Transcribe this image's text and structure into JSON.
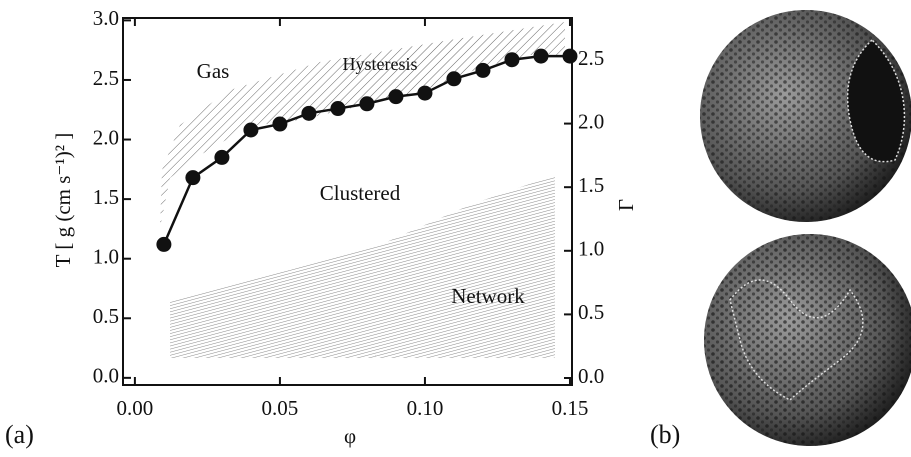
{
  "chart_data": {
    "type": "line",
    "x_label": "φ",
    "y_label": "T [ g (cm s⁻¹)² ]",
    "y2_label": "Γ",
    "x": [
      0.01,
      0.02,
      0.03,
      0.04,
      0.05,
      0.06,
      0.07,
      0.08,
      0.09,
      0.1,
      0.11,
      0.12,
      0.13,
      0.14,
      0.15
    ],
    "series": [
      {
        "color": "#111111",
        "values": [
          1.12,
          1.68,
          1.85,
          2.08,
          2.13,
          2.22,
          2.26,
          2.3,
          2.36,
          2.39,
          2.51,
          2.58,
          2.67,
          2.7,
          2.7
        ]
      }
    ],
    "xlim": [
      -0.0041,
      0.1507
    ],
    "xticks": [
      {
        "value": 0,
        "label": "0.00"
      },
      0.05,
      {
        "value": 0.1,
        "label": "0.10"
      },
      0.15
    ],
    "ylim": [
      -0.06,
      3.02
    ],
    "yticks": [
      {
        "value": 0,
        "label": "0.0"
      },
      0.5,
      {
        "value": 1,
        "label": "1.0"
      },
      1.5,
      {
        "value": 2,
        "label": "2.0"
      },
      2.5,
      {
        "value": 3,
        "label": "3.0"
      }
    ],
    "y2lim": [
      -0.055,
      2.83
    ],
    "y2ticks": [
      {
        "value": 0,
        "label": "0.0"
      },
      0.5,
      {
        "value": 1,
        "label": "1.0"
      },
      1.5,
      {
        "value": 2,
        "label": "2.0"
      },
      2.5
    ],
    "annotations": [
      "Gas",
      "Hysteresis",
      "Clustered",
      "Network"
    ],
    "panel_labels": [
      "(a)",
      "(b)"
    ]
  }
}
